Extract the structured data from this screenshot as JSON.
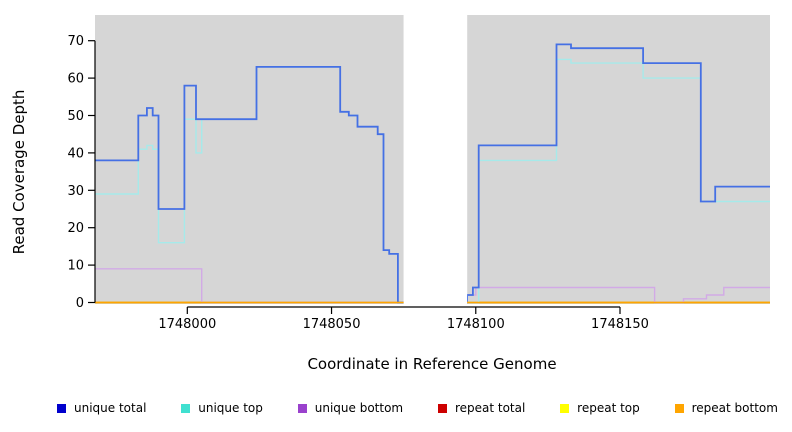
{
  "chart_data": {
    "type": "line",
    "subtype": "step",
    "title": "",
    "xlabel": "Coordinate in Reference Genome",
    "ylabel": "Read Coverage Depth",
    "xlim": [
      1747968,
      1748202
    ],
    "ylim": [
      0,
      70
    ],
    "xticks": [
      1748000,
      1748050,
      1748100,
      1748150
    ],
    "yticks": [
      0,
      10,
      20,
      30,
      40,
      50,
      60,
      70
    ],
    "grid": false,
    "legend_position": "bottom",
    "panel_background": "#d6d6d6",
    "shaded_regions": [
      [
        1747968,
        1748075
      ],
      [
        1748097,
        1748202
      ]
    ],
    "gap_region": [
      1748075,
      1748097
    ],
    "series": [
      {
        "name": "unique total",
        "color": "#4570e4",
        "legend_color": "#0000cd",
        "steps": [
          [
            1747968,
            38
          ],
          [
            1747983,
            50
          ],
          [
            1747986,
            52
          ],
          [
            1747988,
            50
          ],
          [
            1747990,
            25
          ],
          [
            1747999,
            58
          ],
          [
            1748003,
            49
          ],
          [
            1748024,
            63
          ],
          [
            1748053,
            51
          ],
          [
            1748056,
            50
          ],
          [
            1748059,
            47
          ],
          [
            1748066,
            45
          ],
          [
            1748068,
            14
          ],
          [
            1748070,
            13
          ],
          [
            1748073,
            0
          ],
          [
            1748097,
            2
          ],
          [
            1748099,
            4
          ],
          [
            1748101,
            42
          ],
          [
            1748128,
            69
          ],
          [
            1748133,
            68
          ],
          [
            1748158,
            64
          ],
          [
            1748178,
            27
          ],
          [
            1748183,
            31
          ]
        ]
      },
      {
        "name": "unique top",
        "color": "#a6eaea",
        "legend_color": "#40e0d0",
        "steps": [
          [
            1747968,
            29
          ],
          [
            1747983,
            41
          ],
          [
            1747986,
            42
          ],
          [
            1747988,
            41
          ],
          [
            1747990,
            16
          ],
          [
            1747999,
            49
          ],
          [
            1748003,
            40
          ],
          [
            1748005,
            49
          ],
          [
            1748024,
            63
          ],
          [
            1748053,
            51
          ],
          [
            1748056,
            50
          ],
          [
            1748059,
            47
          ],
          [
            1748066,
            45
          ],
          [
            1748068,
            14
          ],
          [
            1748070,
            13
          ],
          [
            1748073,
            0
          ],
          [
            1748101,
            38
          ],
          [
            1748128,
            65
          ],
          [
            1748133,
            64
          ],
          [
            1748158,
            60
          ],
          [
            1748178,
            27
          ]
        ]
      },
      {
        "name": "unique bottom",
        "color": "#d2aae6",
        "legend_color": "#9a41cd",
        "steps": [
          [
            1747968,
            9
          ],
          [
            1748005,
            0
          ],
          [
            1748097,
            2
          ],
          [
            1748100,
            4
          ],
          [
            1748162,
            0
          ],
          [
            1748172,
            1
          ],
          [
            1748180,
            2
          ],
          [
            1748186,
            4
          ]
        ]
      },
      {
        "name": "repeat total",
        "color": "#cd0000",
        "legend_color": "#cd0000",
        "steps": [
          [
            1747968,
            0
          ]
        ]
      },
      {
        "name": "repeat top",
        "color": "#ffff00",
        "legend_color": "#ffff00",
        "steps": [
          [
            1747968,
            0
          ]
        ]
      },
      {
        "name": "repeat bottom",
        "color": "#ffa500",
        "legend_color": "#ffa500",
        "steps": [
          [
            1747968,
            0
          ]
        ]
      }
    ]
  }
}
